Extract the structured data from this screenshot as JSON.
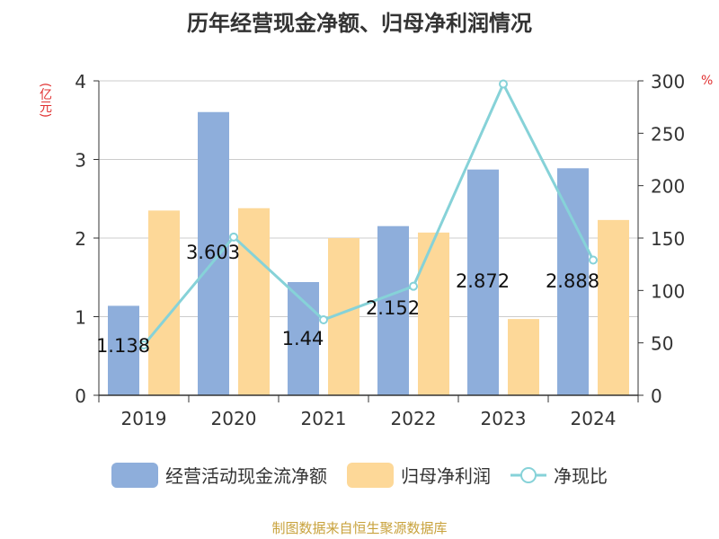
{
  "title": "历年经营现金净额、归母净利润情况",
  "units": {
    "left": "(亿元)",
    "right": "%"
  },
  "source": "制图数据来自恒生聚源数据库",
  "colors": {
    "cash": "#8eaedb",
    "profit": "#fdd898",
    "ratio": "#86d2d8"
  },
  "chart_data": {
    "type": "bar",
    "title": "历年经营现金净额、归母净利润情况",
    "categories": [
      "2019",
      "2020",
      "2021",
      "2022",
      "2023",
      "2024"
    ],
    "series": [
      {
        "name": "经营活动现金流净额",
        "type": "bar",
        "axis": "left",
        "values": [
          1.138,
          3.603,
          1.44,
          2.152,
          2.872,
          2.888
        ],
        "labels": [
          "1.138",
          "3.603",
          "1.44",
          "2.152",
          "2.872",
          "2.888"
        ]
      },
      {
        "name": "归母净利润",
        "type": "bar",
        "axis": "left",
        "values": [
          2.35,
          2.38,
          2.0,
          2.07,
          0.97,
          2.23
        ]
      },
      {
        "name": "净现比",
        "type": "line",
        "axis": "right",
        "values": [
          48,
          151,
          72,
          104,
          297,
          129
        ]
      }
    ],
    "y_left": {
      "label": "(亿元)",
      "range": [
        0,
        4
      ],
      "ticks": [
        0,
        1,
        2,
        3,
        4
      ]
    },
    "y_right": {
      "label": "%",
      "range": [
        0,
        300
      ],
      "ticks": [
        0,
        50,
        100,
        150,
        200,
        250,
        300
      ]
    },
    "grid": true,
    "legend_position": "bottom"
  }
}
